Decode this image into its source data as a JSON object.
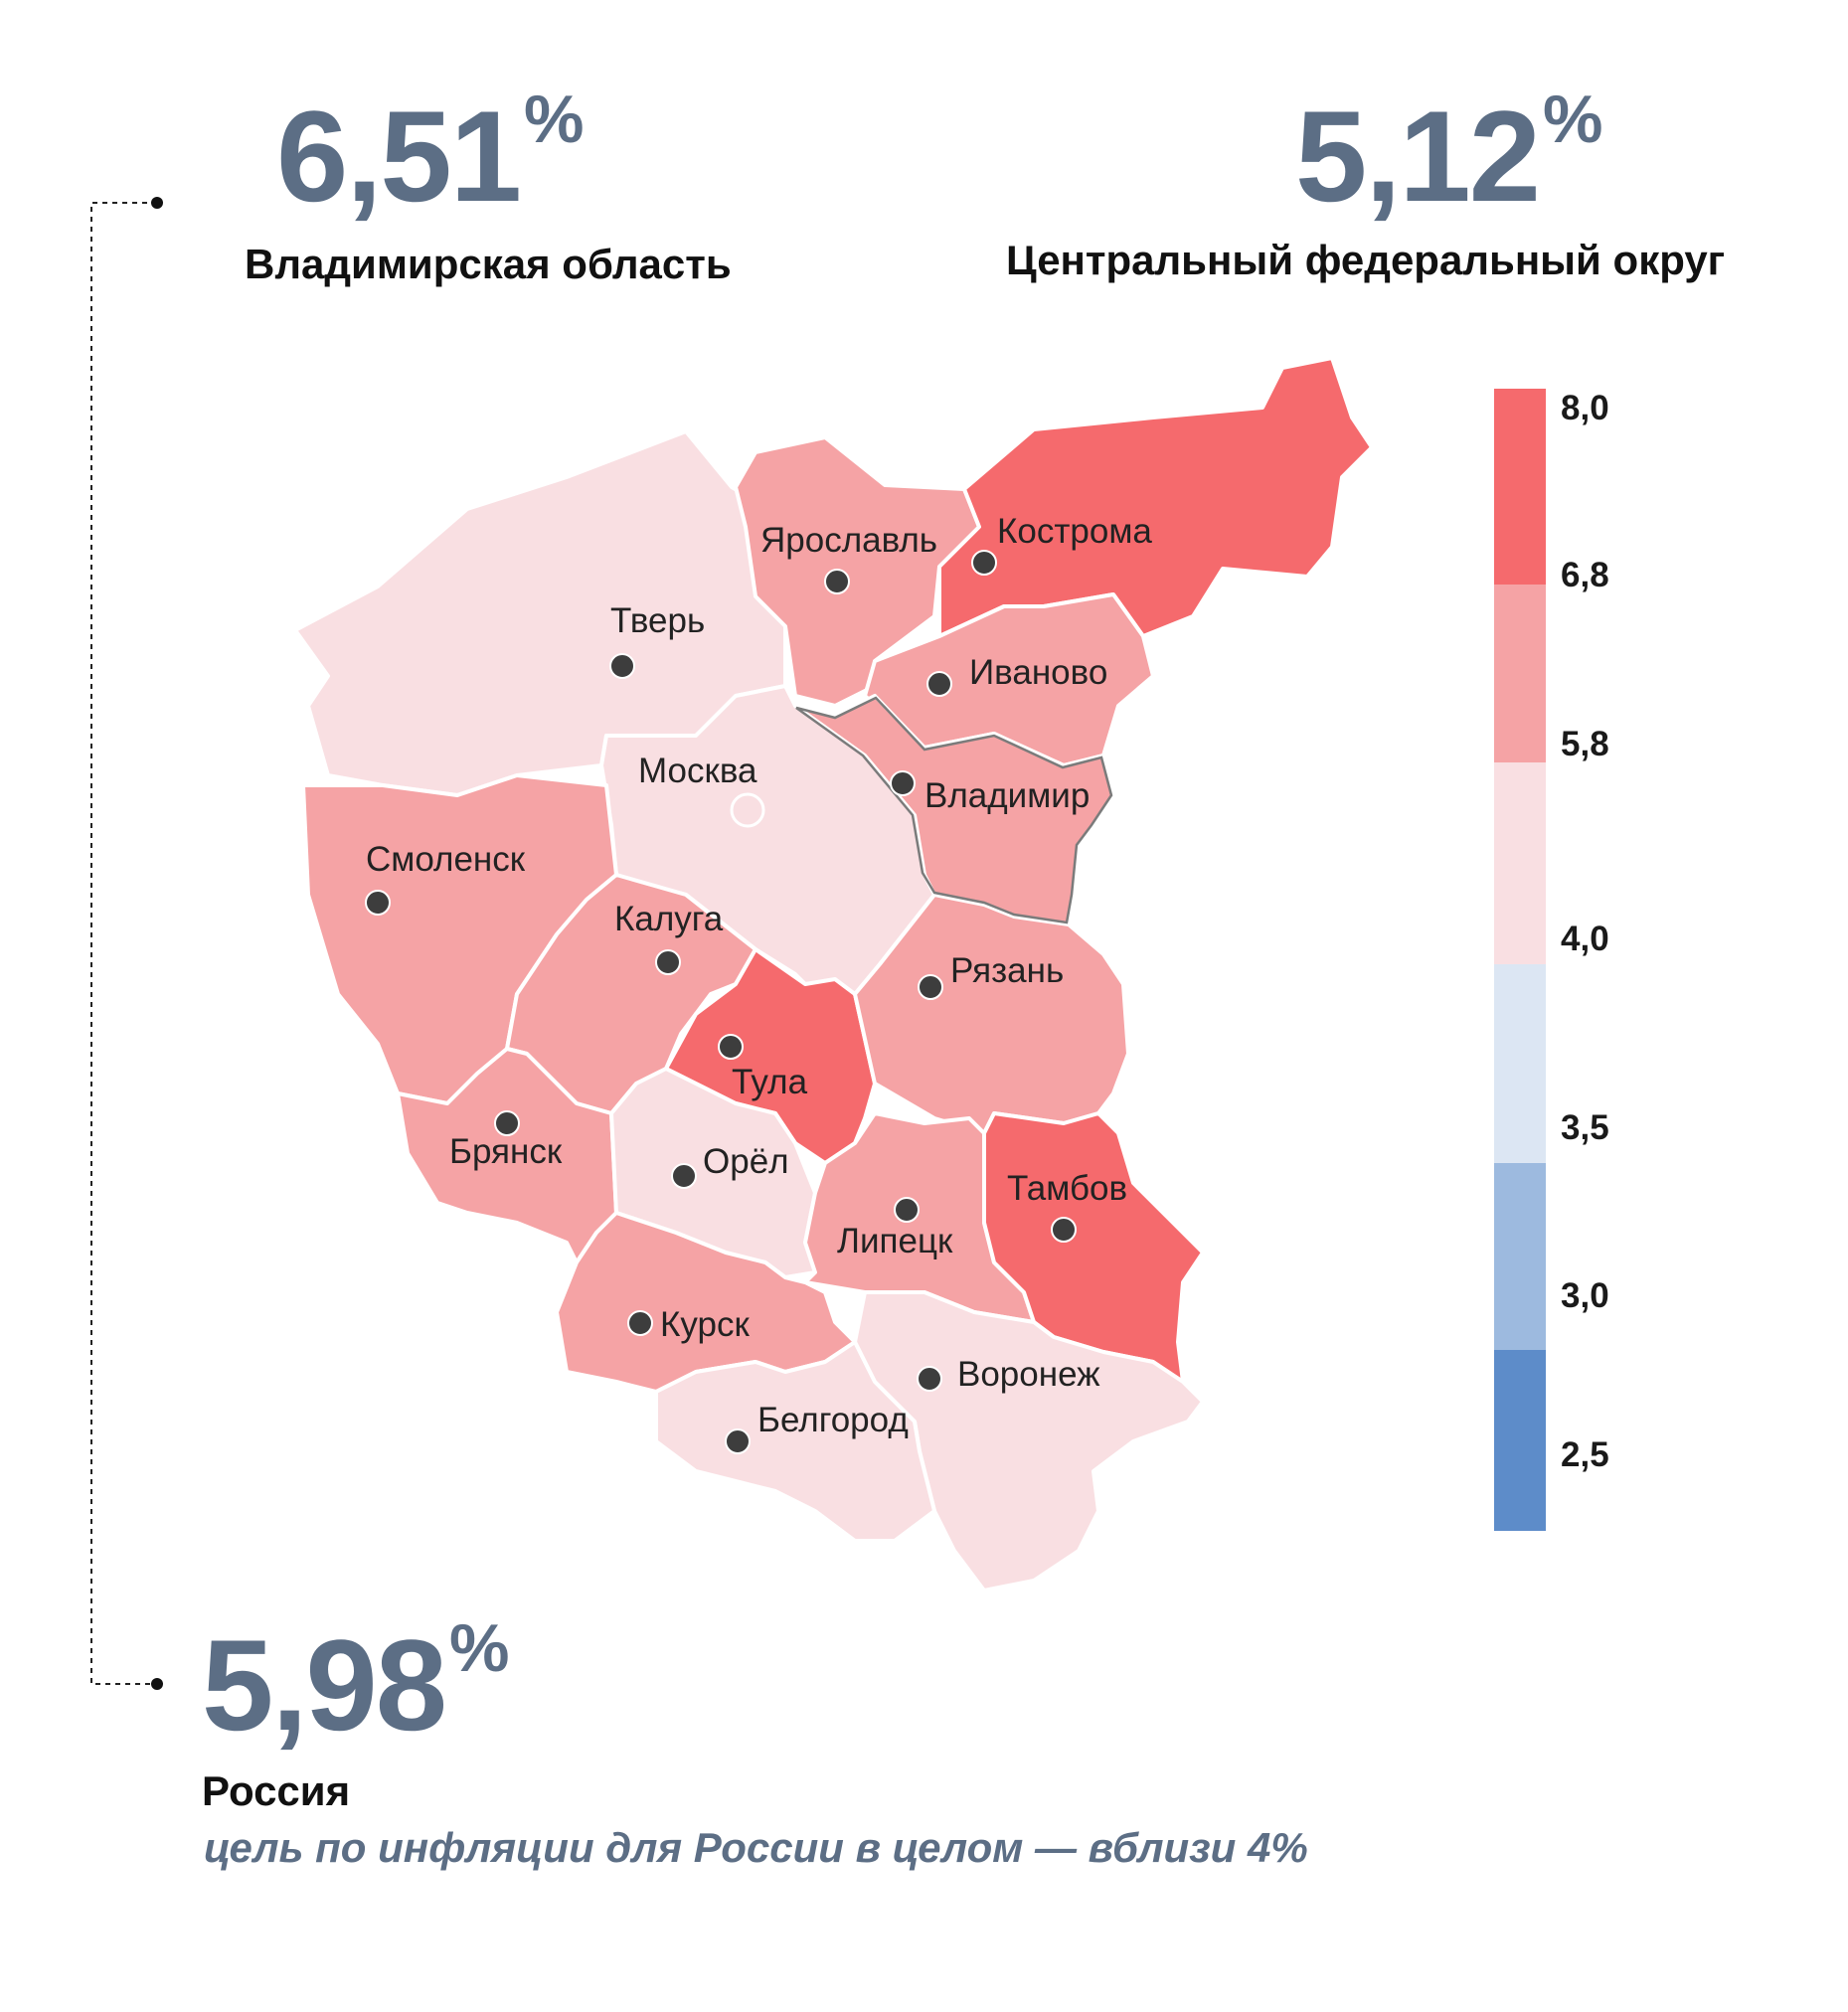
{
  "stats": {
    "vladimir": {
      "value": "6,51",
      "unit": "%",
      "label": "Владимирская область"
    },
    "cfo": {
      "value": "5,12",
      "unit": "%",
      "label": "Центральный федеральный округ"
    },
    "russia": {
      "value": "5,98",
      "unit": "%",
      "label": "Россия"
    }
  },
  "note": "цель по инфляции для России в целом — вблизи 4%",
  "colors": {
    "text_accent": "#5c6e85",
    "above_6_8": "#f56a6d",
    "5_8_to_6_8": "#f5a3a5",
    "4_0_to_5_8": "#f9dfe2",
    "3_5_to_4_0": "#dce6f3",
    "3_0_to_3_5": "#9dbadf",
    "below_3_0": "#5d8cc9"
  },
  "legend": {
    "ticks": [
      "8,0",
      "6,8",
      "5,8",
      "4,0",
      "3,5",
      "3,0",
      "2,5"
    ]
  },
  "map": {
    "regions": [
      {
        "name": "Тверь",
        "color_class": "4_0_to_5_8"
      },
      {
        "name": "Ярославль",
        "color_class": "5_8_to_6_8"
      },
      {
        "name": "Кострома",
        "color_class": "above_6_8"
      },
      {
        "name": "Иваново",
        "color_class": "5_8_to_6_8"
      },
      {
        "name": "Москва",
        "color_class": "4_0_to_5_8"
      },
      {
        "name": "Владимир",
        "color_class": "5_8_to_6_8"
      },
      {
        "name": "Смоленск",
        "color_class": "5_8_to_6_8"
      },
      {
        "name": "Калуга",
        "color_class": "5_8_to_6_8"
      },
      {
        "name": "Тула",
        "color_class": "above_6_8"
      },
      {
        "name": "Рязань",
        "color_class": "5_8_to_6_8"
      },
      {
        "name": "Брянск",
        "color_class": "5_8_to_6_8"
      },
      {
        "name": "Орёл",
        "color_class": "4_0_to_5_8"
      },
      {
        "name": "Липецк",
        "color_class": "5_8_to_6_8"
      },
      {
        "name": "Тамбов",
        "color_class": "above_6_8"
      },
      {
        "name": "Курск",
        "color_class": "5_8_to_6_8"
      },
      {
        "name": "Воронеж",
        "color_class": "4_0_to_5_8"
      },
      {
        "name": "Белгород",
        "color_class": "4_0_to_5_8"
      }
    ]
  }
}
